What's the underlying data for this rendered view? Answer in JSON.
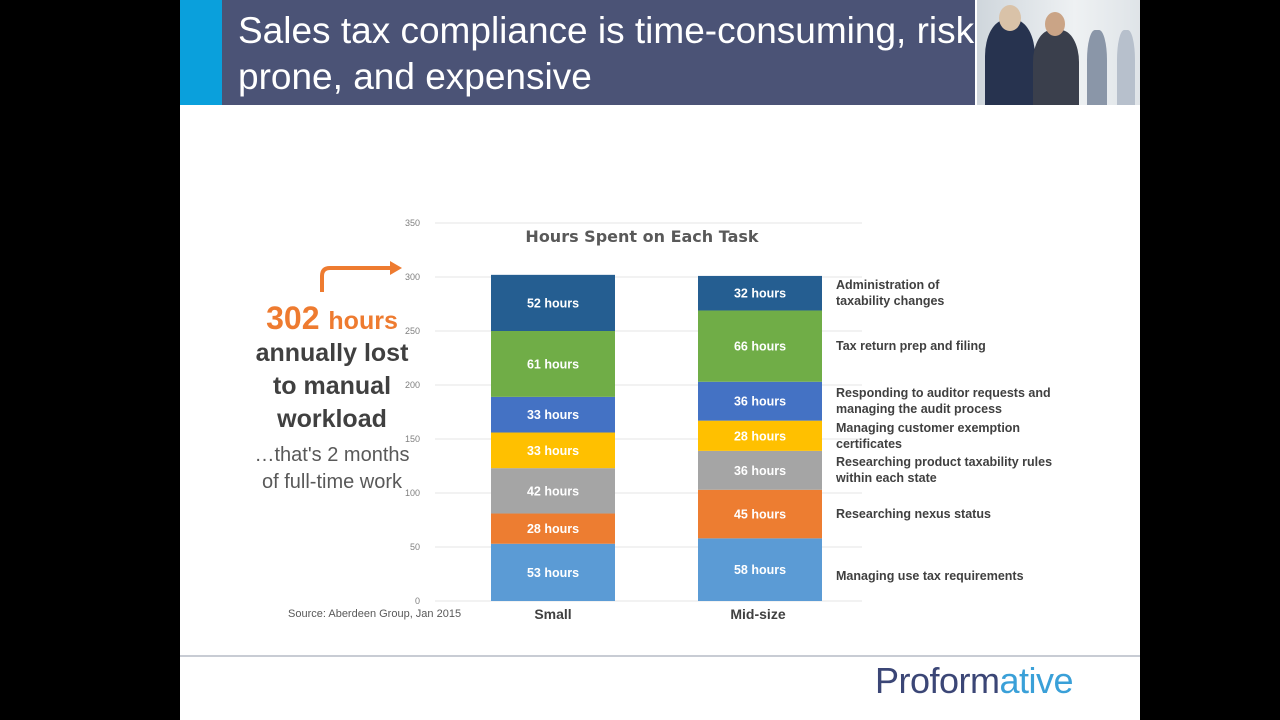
{
  "slide": {
    "title": "Sales tax compliance is time-consuming, risk prone, and expensive",
    "callout": {
      "number": "302",
      "unit": "hours",
      "text": "annually lost to manual workload",
      "subtext": "…that's 2 months of full-time work"
    },
    "source": "Source: Aberdeen Group, Jan 2015",
    "logo": {
      "part1": "Proform",
      "part2": "ative"
    }
  },
  "chart_data": {
    "type": "bar",
    "stacked": true,
    "title": "Hours Spent on Each Task",
    "categories": [
      "Small",
      "Mid-size"
    ],
    "ylim": [
      0,
      350
    ],
    "yticks": [
      0,
      50,
      100,
      150,
      200,
      250,
      300
    ],
    "grid": true,
    "series": [
      {
        "name": "Managing use tax requirements",
        "color": "#5b9bd5",
        "values": [
          53,
          58
        ],
        "labels": [
          "53 hours",
          "58 hours"
        ]
      },
      {
        "name": "Researching nexus status",
        "color": "#ed7d31",
        "values": [
          28,
          45
        ],
        "labels": [
          "28 hours",
          "45 hours"
        ]
      },
      {
        "name": "Researching product taxability rules within each state",
        "color": "#a5a5a5",
        "values": [
          42,
          36
        ],
        "labels": [
          "42 hours",
          "36 hours"
        ]
      },
      {
        "name": "Managing customer exemption certificates",
        "color": "#ffc000",
        "values": [
          33,
          28
        ],
        "labels": [
          "33 hours",
          "28 hours"
        ]
      },
      {
        "name": "Responding to auditor requests and managing the audit process",
        "color": "#4472c4",
        "values": [
          33,
          36
        ],
        "labels": [
          "33 hours",
          "36 hours"
        ]
      },
      {
        "name": "Tax return prep and filing",
        "color": "#70ad47",
        "values": [
          61,
          66
        ],
        "labels": [
          "61 hours",
          "66 hours"
        ]
      },
      {
        "name": "Administration of taxability changes",
        "color": "#255e91",
        "values": [
          52,
          32
        ],
        "labels": [
          "52  hours",
          "32 hours"
        ]
      }
    ],
    "legend_placement": "right"
  },
  "colors": {
    "accent": "#0aa0dc",
    "titlebar": "#4b5376",
    "highlight": "#ee7b30"
  }
}
